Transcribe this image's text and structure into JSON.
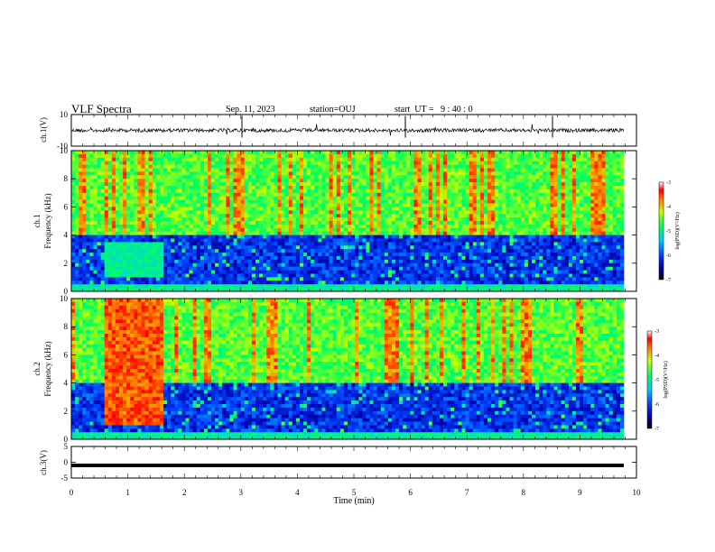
{
  "header": {
    "title": "VLF Spectra",
    "date": "Sep. 11, 2023",
    "station": "station=OUJ",
    "start": "start  UT =   9 : 40 : 0"
  },
  "chart_data": [
    {
      "type": "line",
      "ylabel": "ch.1(V)",
      "ylim": [
        -10,
        10
      ],
      "yticks": [
        "10",
        "-10"
      ],
      "xlim": [
        0,
        10
      ],
      "baseline": 0,
      "color": "#000000"
    },
    {
      "type": "heatmap",
      "ylabel_1": "ch.1",
      "ylabel_2": "Frequency  (kHz)",
      "ylim": [
        0,
        10
      ],
      "yticks": [
        "0",
        "2",
        "4",
        "6",
        "8",
        "10"
      ],
      "xlim": [
        0,
        10
      ],
      "colorbar": {
        "label": "log(PSD)(V²/Hz)",
        "range": [
          -7,
          -3
        ],
        "ticks": [
          "-3",
          "-4",
          "-5",
          "-6",
          "-7"
        ]
      }
    },
    {
      "type": "heatmap",
      "ylabel_1": "ch.2",
      "ylabel_2": "Frequency  (kHz)",
      "ylim": [
        0,
        10
      ],
      "yticks": [
        "0",
        "2",
        "4",
        "6",
        "8",
        "10"
      ],
      "xlim": [
        0,
        10
      ],
      "colorbar": {
        "label": "log(PSD)(V²/Hz)",
        "range": [
          -7,
          -3
        ],
        "ticks": [
          "-3",
          "-4",
          "-5",
          "-6",
          "-7"
        ]
      }
    },
    {
      "type": "line",
      "ylabel": "ch.3(V)",
      "ylim": [
        -5,
        5
      ],
      "yticks": [
        "5",
        "0",
        "-5"
      ],
      "xlim": [
        0,
        10
      ],
      "baseline": -1,
      "color": "#000000",
      "xlabel": "Time  (min)",
      "xticks": [
        "0",
        "1",
        "2",
        "3",
        "4",
        "5",
        "6",
        "7",
        "8",
        "9",
        "10"
      ]
    }
  ]
}
